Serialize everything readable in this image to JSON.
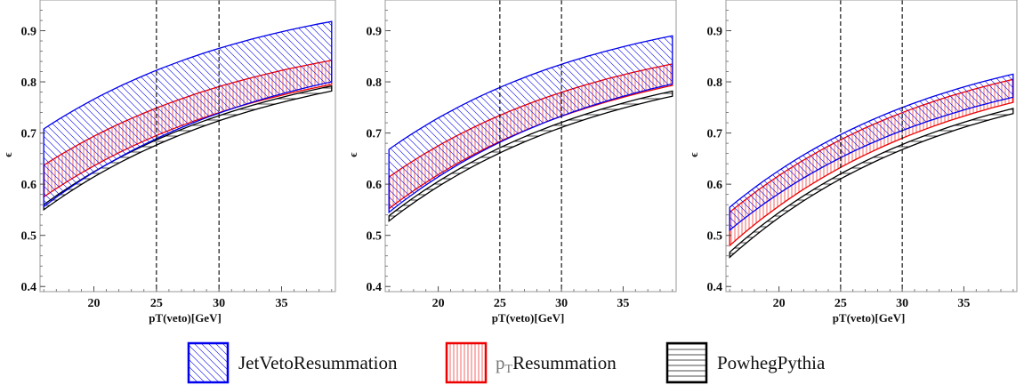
{
  "chart_data": [
    {
      "type": "area",
      "xlabel": "pT(veto)[GeV]",
      "ylabel": "ϵ",
      "xlim": [
        15.7,
        39.3
      ],
      "ylim": [
        0.39,
        0.96
      ],
      "xticks": [
        20,
        25,
        30,
        35
      ],
      "yticks": [
        0.4,
        0.5,
        0.6,
        0.7,
        0.8,
        0.9
      ],
      "vlines": [
        25,
        30
      ],
      "series": [
        {
          "name": "JetVetoResummation",
          "color": "#0000ee",
          "x": [
            16,
            39
          ],
          "lower": [
            0.556,
            0.8
          ],
          "upper": [
            0.708,
            0.918
          ],
          "hatch": "diagonal"
        },
        {
          "name": "pTResummation",
          "color": "#ee0000",
          "x": [
            16,
            39
          ],
          "lower": [
            0.575,
            0.795
          ],
          "upper": [
            0.637,
            0.842
          ],
          "hatch": "vertical"
        },
        {
          "name": "PowhegPythia",
          "color": "#000000",
          "x": [
            16,
            39
          ],
          "lower": [
            0.55,
            0.782
          ],
          "upper": [
            0.56,
            0.792
          ],
          "hatch": "horizontal"
        }
      ]
    },
    {
      "type": "area",
      "xlabel": "pT(veto)[GeV]",
      "ylabel": "ϵ",
      "xlim": [
        15.7,
        39.3
      ],
      "ylim": [
        0.39,
        0.96
      ],
      "xticks": [
        20,
        25,
        30,
        35
      ],
      "yticks": [
        0.4,
        0.5,
        0.6,
        0.7,
        0.8,
        0.9
      ],
      "vlines": [
        25,
        30
      ],
      "series": [
        {
          "name": "JetVetoResummation",
          "color": "#0000ee",
          "x": [
            16,
            39
          ],
          "lower": [
            0.545,
            0.796
          ],
          "upper": [
            0.668,
            0.89
          ],
          "hatch": "diagonal"
        },
        {
          "name": "pTResummation",
          "color": "#ee0000",
          "x": [
            16,
            39
          ],
          "lower": [
            0.552,
            0.793
          ],
          "upper": [
            0.614,
            0.835
          ],
          "hatch": "vertical"
        },
        {
          "name": "PowhegPythia",
          "color": "#000000",
          "x": [
            16,
            39
          ],
          "lower": [
            0.528,
            0.772
          ],
          "upper": [
            0.538,
            0.782
          ],
          "hatch": "horizontal"
        }
      ]
    },
    {
      "type": "area",
      "xlabel": "pT(veto)[GeV]",
      "ylabel": "ϵ",
      "xlim": [
        15.7,
        39.3
      ],
      "ylim": [
        0.39,
        0.96
      ],
      "xticks": [
        20,
        25,
        30,
        35
      ],
      "yticks": [
        0.4,
        0.5,
        0.6,
        0.7,
        0.8,
        0.9
      ],
      "vlines": [
        25,
        30
      ],
      "series": [
        {
          "name": "JetVetoResummation",
          "color": "#0000ee",
          "x": [
            16,
            39
          ],
          "lower": [
            0.51,
            0.77
          ],
          "upper": [
            0.555,
            0.815
          ],
          "hatch": "diagonal"
        },
        {
          "name": "pTResummation",
          "color": "#ee0000",
          "x": [
            16,
            39
          ],
          "lower": [
            0.48,
            0.76
          ],
          "upper": [
            0.545,
            0.805
          ],
          "hatch": "vertical"
        },
        {
          "name": "PowhegPythia",
          "color": "#000000",
          "x": [
            16,
            39
          ],
          "lower": [
            0.457,
            0.738
          ],
          "upper": [
            0.467,
            0.748
          ],
          "hatch": "horizontal"
        }
      ]
    }
  ],
  "legend": {
    "placement": "bottom-center",
    "items": [
      {
        "label": "JetVetoResummation",
        "color": "#0000ee",
        "hatch": "diagonal"
      },
      {
        "label_main": "p",
        "label_sub": "T",
        "label_rest": "Resummation",
        "color": "#ee0000",
        "hatch": "vertical"
      },
      {
        "label": "PowhegPythia",
        "color": "#000000",
        "hatch": "horizontal"
      }
    ]
  }
}
